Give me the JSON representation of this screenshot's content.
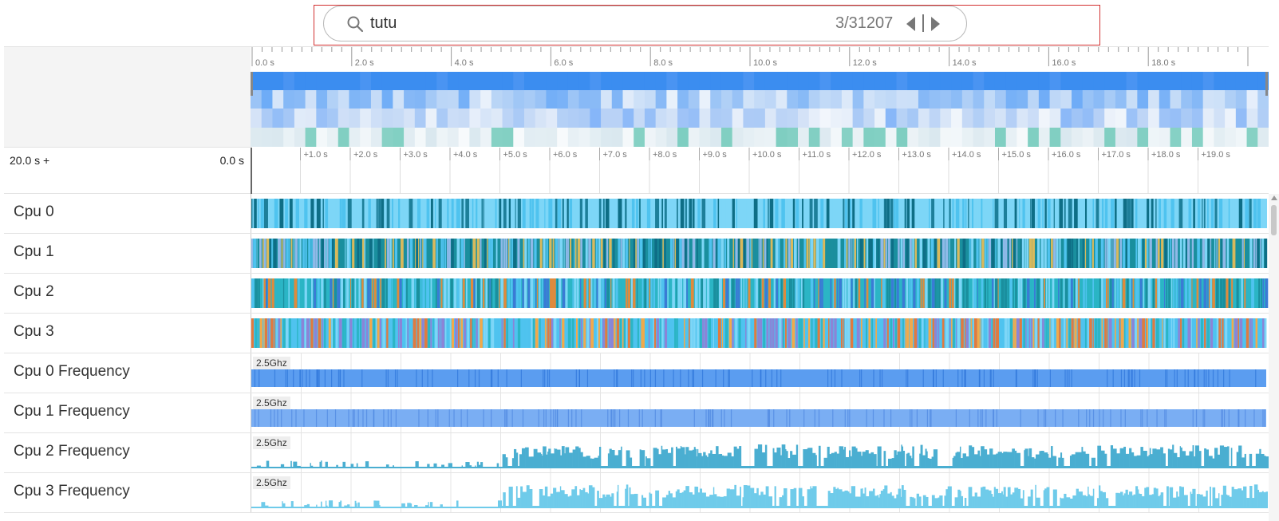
{
  "search": {
    "query": "tutu",
    "match_counter": "3/31207",
    "prev_label": "previous match",
    "next_label": "next match"
  },
  "overview_ruler": {
    "labels": [
      "0.0 s",
      "2.0 s",
      "4.0 s",
      "6.0 s",
      "8.0 s",
      "10.0 s",
      "12.0 s",
      "14.0 s",
      "16.0 s",
      "18.0 s"
    ]
  },
  "time_header": {
    "range_start": "20.0 s +",
    "range_end": "0.0 s",
    "ticks": [
      "+1.0 s",
      "+2.0 s",
      "+3.0 s",
      "+4.0 s",
      "+5.0 s",
      "+6.0 s",
      "+7.0 s",
      "+8.0 s",
      "+9.0 s",
      "+10.0 s",
      "+11.0 s",
      "+12.0 s",
      "+13.0 s",
      "+14.0 s",
      "+15.0 s",
      "+16.0 s",
      "+17.0 s",
      "+18.0 s",
      "+19.0 s"
    ]
  },
  "rows": [
    {
      "label": "Cpu 0",
      "kind": "cpu"
    },
    {
      "label": "Cpu 1",
      "kind": "cpu"
    },
    {
      "label": "Cpu 2",
      "kind": "cpu"
    },
    {
      "label": "Cpu 3",
      "kind": "cpu"
    },
    {
      "label": "Cpu 0 Frequency",
      "kind": "freq",
      "max": "2.5Ghz"
    },
    {
      "label": "Cpu 1 Frequency",
      "kind": "freq",
      "max": "2.5Ghz"
    },
    {
      "label": "Cpu 2 Frequency",
      "kind": "freq",
      "max": "2.5Ghz"
    },
    {
      "label": "Cpu 3 Frequency",
      "kind": "freq",
      "max": "2.5Ghz"
    }
  ],
  "colors": {
    "search_highlight_border": "#d23030",
    "cpu_palette_0": [
      "#7dd6f7",
      "#4fc3ef",
      "#1d7f9a",
      "#0e6e86"
    ],
    "cpu_palette_1": [
      "#1a8f9e",
      "#0e6e86",
      "#4fc3ef",
      "#7dd6f7",
      "#d9b95c",
      "#8fb9e8"
    ],
    "cpu_palette_2": [
      "#2bb5c5",
      "#1a8f9e",
      "#4fc3ef",
      "#3a7bd5",
      "#e08a3c",
      "#7dd6f7"
    ],
    "cpu_palette_3": [
      "#4fc3ef",
      "#2bb5c5",
      "#f2a94a",
      "#8b84d7",
      "#e07a40",
      "#7dd6f7"
    ],
    "freq_0": "#5b9df0",
    "freq_1": "#7aaef3",
    "freq_2": "#4aaed1",
    "freq_3": "#6fcbea",
    "overview_top": "#3b8df0"
  }
}
